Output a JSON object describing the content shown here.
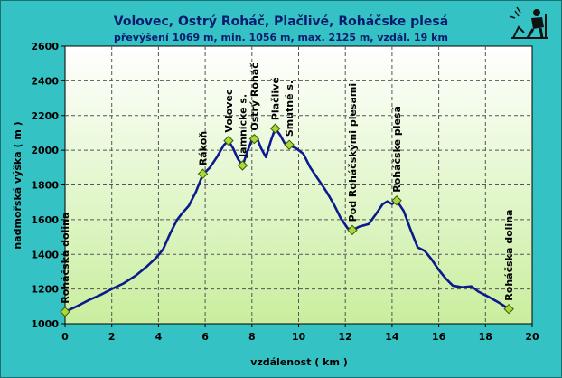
{
  "chart_data": {
    "type": "area",
    "title": "Volovec, Ostrý Roháč, Plačlivé, Roháčske plesá",
    "subtitle": "převýšení 1069 m, min. 1056 m, max. 2125 m, vzdál. 19 km",
    "xlabel": "vzdálenost ( km )",
    "ylabel": "nadmořská výška ( m )",
    "xlim": [
      0,
      20
    ],
    "ylim": [
      1000,
      2600
    ],
    "xticks": [
      0,
      2,
      4,
      6,
      8,
      10,
      12,
      14,
      16,
      18,
      20
    ],
    "yticks": [
      1000,
      1200,
      1400,
      1600,
      1800,
      2000,
      2200,
      2400,
      2600
    ],
    "grid": true,
    "colors": {
      "line": "#0b1a8c",
      "marker": "#a8d93a",
      "plot_top": "#ffffff",
      "plot_bottom": "#c9ee9e",
      "background": "#35c2c4"
    },
    "profile": [
      [
        0.0,
        1069
      ],
      [
        0.5,
        1100
      ],
      [
        1.0,
        1135
      ],
      [
        1.5,
        1165
      ],
      [
        2.0,
        1200
      ],
      [
        2.5,
        1232
      ],
      [
        3.0,
        1275
      ],
      [
        3.5,
        1330
      ],
      [
        3.9,
        1380
      ],
      [
        4.2,
        1430
      ],
      [
        4.5,
        1520
      ],
      [
        4.8,
        1600
      ],
      [
        5.0,
        1635
      ],
      [
        5.3,
        1680
      ],
      [
        5.6,
        1760
      ],
      [
        5.9,
        1860
      ],
      [
        6.2,
        1900
      ],
      [
        6.5,
        1960
      ],
      [
        6.8,
        2030
      ],
      [
        7.0,
        2055
      ],
      [
        7.2,
        2010
      ],
      [
        7.4,
        1950
      ],
      [
        7.6,
        1910
      ],
      [
        7.8,
        1990
      ],
      [
        8.0,
        2060
      ],
      [
        8.2,
        2075
      ],
      [
        8.4,
        2010
      ],
      [
        8.6,
        1960
      ],
      [
        8.8,
        2050
      ],
      [
        9.0,
        2125
      ],
      [
        9.2,
        2090
      ],
      [
        9.4,
        2040
      ],
      [
        9.6,
        2030
      ],
      [
        9.9,
        2010
      ],
      [
        10.2,
        1980
      ],
      [
        10.5,
        1900
      ],
      [
        10.9,
        1820
      ],
      [
        11.2,
        1760
      ],
      [
        11.5,
        1690
      ],
      [
        11.8,
        1610
      ],
      [
        12.1,
        1550
      ],
      [
        12.3,
        1540
      ],
      [
        12.6,
        1560
      ],
      [
        13.0,
        1575
      ],
      [
        13.3,
        1630
      ],
      [
        13.6,
        1690
      ],
      [
        13.8,
        1705
      ],
      [
        14.0,
        1690
      ],
      [
        14.2,
        1710
      ],
      [
        14.5,
        1650
      ],
      [
        14.8,
        1540
      ],
      [
        15.1,
        1440
      ],
      [
        15.4,
        1420
      ],
      [
        15.7,
        1370
      ],
      [
        16.0,
        1310
      ],
      [
        16.3,
        1260
      ],
      [
        16.6,
        1220
      ],
      [
        17.0,
        1210
      ],
      [
        17.4,
        1215
      ],
      [
        17.7,
        1185
      ],
      [
        18.2,
        1150
      ],
      [
        18.6,
        1120
      ],
      [
        19.0,
        1085
      ]
    ],
    "waypoints": [
      {
        "name": "Roháčska dolina",
        "x": 0.0,
        "y": 1069
      },
      {
        "name": "Rákoň",
        "x": 5.9,
        "y": 1864
      },
      {
        "name": "Volovec",
        "x": 7.0,
        "y": 2055
      },
      {
        "name": "Jamnícke s.",
        "x": 7.6,
        "y": 1912
      },
      {
        "name": "Ostrý Roháč",
        "x": 8.1,
        "y": 2065
      },
      {
        "name": "Plačlivé",
        "x": 9.0,
        "y": 2125
      },
      {
        "name": "Smutné s.",
        "x": 9.6,
        "y": 2031
      },
      {
        "name": "Pod Roháčskými plesami",
        "x": 12.3,
        "y": 1540
      },
      {
        "name": "Roháčske plesá",
        "x": 14.2,
        "y": 1710
      },
      {
        "name": "Roháčska dolina",
        "x": 19.0,
        "y": 1085
      }
    ]
  }
}
